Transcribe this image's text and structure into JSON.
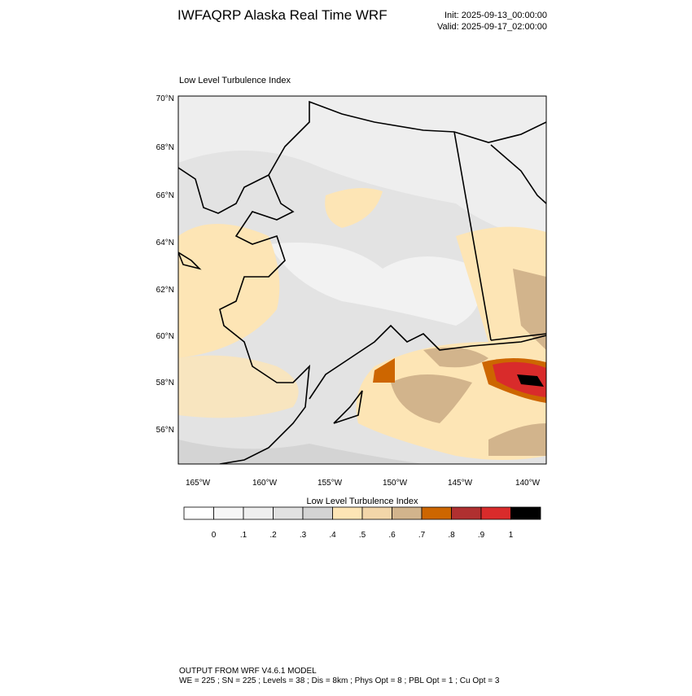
{
  "header": {
    "title": "IWFAQRP Alaska Real Time WRF",
    "init": "Init: 2025-09-13_00:00:00",
    "valid": "Valid: 2025-09-17_02:00:00"
  },
  "map": {
    "title": "Low Level Turbulence Index",
    "lat_labels": [
      "70°N",
      "68°N",
      "66°N",
      "64°N",
      "62°N",
      "60°N",
      "58°N",
      "56°N"
    ],
    "lon_labels": [
      "165°W",
      "160°W",
      "155°W",
      "150°W",
      "145°W",
      "140°W"
    ]
  },
  "colorbar": {
    "title": "Low Level Turbulence Index",
    "colors": [
      "#ffffff",
      "#f7f7f7",
      "#efefef",
      "#e1e1e1",
      "#d4d4d4",
      "#fde5b5",
      "#f3d6a9",
      "#d2b48c",
      "#cd6600",
      "#b03030",
      "#d92b2b",
      "#000000"
    ],
    "labels": [
      "0",
      ".1",
      ".2",
      ".3",
      ".4",
      ".5",
      ".6",
      ".7",
      ".8",
      ".9",
      "1"
    ]
  },
  "footer": {
    "line1": "OUTPUT FROM WRF V4.6.1 MODEL",
    "line2": "WE = 225 ; SN = 225 ; Levels = 38 ; Dis = 8km ; Phys Opt = 8 ; PBL Opt = 1 ; Cu Opt = 3"
  }
}
